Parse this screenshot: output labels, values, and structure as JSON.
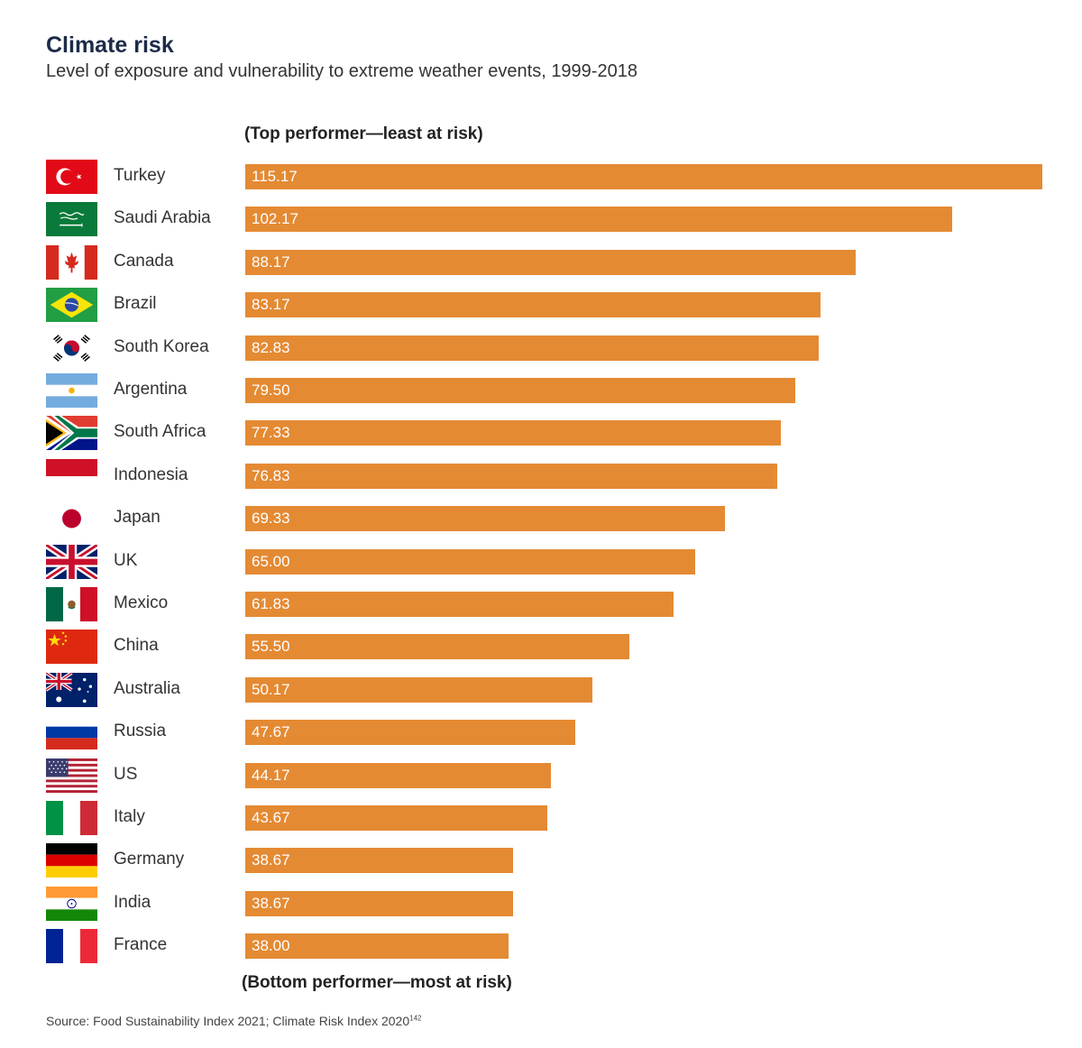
{
  "header": {
    "title": "Climate risk",
    "subtitle": "Level of exposure and vulnerability to extreme weather events, 1999-2018"
  },
  "notes": {
    "top": "(Top performer—least at risk)",
    "bottom": "(Bottom performer—most at risk)"
  },
  "footer": {
    "source": "Source: Food Sustainability Index 2021; Climate Risk Index 2020",
    "source_ref": "142"
  },
  "colors": {
    "bar": "#e48a33",
    "title": "#1c2b49"
  },
  "chart_data": {
    "type": "bar",
    "orientation": "horizontal",
    "title": "Climate risk",
    "subtitle": "Level of exposure and vulnerability to extreme weather events, 1999-2018",
    "xlim": [
      0,
      115.17
    ],
    "categories": [
      "Turkey",
      "Saudi Arabia",
      "Canada",
      "Brazil",
      "South Korea",
      "Argentina",
      "South Africa",
      "Indonesia",
      "Japan",
      "UK",
      "Mexico",
      "China",
      "Australia",
      "Russia",
      "US",
      "Italy",
      "Germany",
      "India",
      "France"
    ],
    "values": [
      115.17,
      102.17,
      88.17,
      83.17,
      82.83,
      79.5,
      77.33,
      76.83,
      69.33,
      65.0,
      61.83,
      55.5,
      50.17,
      47.67,
      44.17,
      43.67,
      38.67,
      38.67,
      38.0
    ],
    "value_labels": [
      "115.17",
      "102.17",
      "88.17",
      "83.17",
      "82.83",
      "79.50",
      "77.33",
      "76.83",
      "69.33",
      "65.00",
      "61.83",
      "55.50",
      "50.17",
      "47.67",
      "44.17",
      "43.67",
      "38.67",
      "38.67",
      "38.00"
    ],
    "flags": [
      "turkey-flag-icon",
      "saudi-arabia-flag-icon",
      "canada-flag-icon",
      "brazil-flag-icon",
      "south-korea-flag-icon",
      "argentina-flag-icon",
      "south-africa-flag-icon",
      "indonesia-flag-icon",
      "japan-flag-icon",
      "uk-flag-icon",
      "mexico-flag-icon",
      "china-flag-icon",
      "australia-flag-icon",
      "russia-flag-icon",
      "us-flag-icon",
      "italy-flag-icon",
      "germany-flag-icon",
      "india-flag-icon",
      "france-flag-icon"
    ]
  }
}
